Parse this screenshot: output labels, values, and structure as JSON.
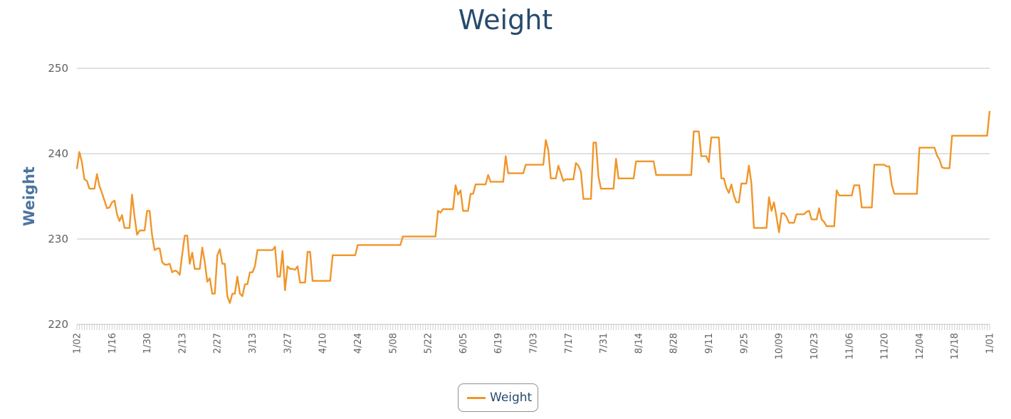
{
  "colors": {
    "series": "#f0962a",
    "title": "#274b6d",
    "grid": "#c0c0c0",
    "axis_title": "#4d759e"
  },
  "chart_data": {
    "type": "line",
    "title": "Weight",
    "xlabel": "",
    "ylabel": "Weight",
    "ylim": [
      220,
      250
    ],
    "yticks": [
      220,
      230,
      240,
      250
    ],
    "grid": true,
    "legend_position": "bottom-center",
    "x_tick_labels": [
      "1/02",
      "1/16",
      "1/30",
      "2/13",
      "2/27",
      "3/13",
      "3/27",
      "4/10",
      "4/24",
      "5/08",
      "5/22",
      "6/05",
      "6/19",
      "7/03",
      "7/17",
      "7/31",
      "8/14",
      "8/28",
      "9/11",
      "9/25",
      "10/09",
      "10/23",
      "11/06",
      "11/20",
      "12/04",
      "12/18",
      "1/01"
    ],
    "series": [
      {
        "name": "Weight",
        "points": [
          [
            0,
            238.2
          ],
          [
            1,
            240.2
          ],
          [
            2,
            239.0
          ],
          [
            3,
            237.0
          ],
          [
            4,
            236.8
          ],
          [
            5,
            235.9
          ],
          [
            7,
            235.9
          ],
          [
            8,
            237.6
          ],
          [
            9,
            236.2
          ],
          [
            10,
            235.4
          ],
          [
            12,
            233.6
          ],
          [
            13,
            233.7
          ],
          [
            14,
            234.3
          ],
          [
            15,
            234.5
          ],
          [
            16,
            232.9
          ],
          [
            17,
            232.1
          ],
          [
            18,
            232.8
          ],
          [
            19,
            231.3
          ],
          [
            21,
            231.3
          ],
          [
            22,
            235.2
          ],
          [
            23,
            232.6
          ],
          [
            24,
            230.5
          ],
          [
            25,
            231.0
          ],
          [
            27,
            231.0
          ],
          [
            28,
            233.3
          ],
          [
            29,
            233.3
          ],
          [
            30,
            230.4
          ],
          [
            31,
            228.7
          ],
          [
            32,
            228.9
          ],
          [
            33,
            228.9
          ],
          [
            34,
            227.3
          ],
          [
            35,
            227.0
          ],
          [
            36,
            227.0
          ],
          [
            37,
            227.1
          ],
          [
            38,
            226.1
          ],
          [
            39,
            226.3
          ],
          [
            40,
            226.2
          ],
          [
            41,
            225.8
          ],
          [
            42,
            228.2
          ],
          [
            43,
            230.4
          ],
          [
            44,
            230.4
          ],
          [
            45,
            227.1
          ],
          [
            46,
            228.4
          ],
          [
            47,
            226.5
          ],
          [
            49,
            226.5
          ],
          [
            50,
            229.0
          ],
          [
            51,
            227.3
          ],
          [
            52,
            225.0
          ],
          [
            53,
            225.4
          ],
          [
            54,
            223.6
          ],
          [
            55,
            223.6
          ],
          [
            56,
            228.1
          ],
          [
            57,
            228.8
          ],
          [
            58,
            227.1
          ],
          [
            59,
            227.1
          ],
          [
            60,
            223.3
          ],
          [
            61,
            222.5
          ],
          [
            62,
            223.6
          ],
          [
            63,
            223.6
          ],
          [
            64,
            225.6
          ],
          [
            65,
            223.6
          ],
          [
            66,
            223.3
          ],
          [
            67,
            224.7
          ],
          [
            68,
            224.7
          ],
          [
            69,
            226.1
          ],
          [
            70,
            226.1
          ],
          [
            71,
            226.8
          ],
          [
            72,
            228.7
          ],
          [
            73,
            228.7
          ],
          [
            78,
            228.7
          ],
          [
            79,
            229.1
          ],
          [
            80,
            225.6
          ],
          [
            81,
            225.6
          ],
          [
            82,
            228.6
          ],
          [
            83,
            224.0
          ],
          [
            84,
            226.8
          ],
          [
            85,
            226.5
          ],
          [
            86,
            226.5
          ],
          [
            87,
            226.4
          ],
          [
            88,
            226.8
          ],
          [
            89,
            224.9
          ],
          [
            90,
            224.9
          ],
          [
            91,
            224.9
          ],
          [
            92,
            228.5
          ],
          [
            93,
            228.5
          ],
          [
            94,
            225.1
          ],
          [
            95,
            225.1
          ],
          [
            101,
            225.1
          ],
          [
            102,
            228.1
          ],
          [
            111,
            228.1
          ],
          [
            112,
            229.3
          ],
          [
            129,
            229.3
          ],
          [
            130,
            230.3
          ],
          [
            143,
            230.3
          ],
          [
            144,
            233.3
          ],
          [
            145,
            233.1
          ],
          [
            146,
            233.5
          ],
          [
            147,
            233.5
          ],
          [
            150,
            233.5
          ],
          [
            151,
            236.3
          ],
          [
            152,
            235.2
          ],
          [
            153,
            235.7
          ],
          [
            154,
            233.3
          ],
          [
            156,
            233.3
          ],
          [
            157,
            235.3
          ],
          [
            158,
            235.3
          ],
          [
            159,
            236.4
          ],
          [
            163,
            236.4
          ],
          [
            164,
            237.5
          ],
          [
            165,
            236.7
          ],
          [
            170,
            236.7
          ],
          [
            171,
            239.7
          ],
          [
            172,
            237.7
          ],
          [
            178,
            237.7
          ],
          [
            179,
            238.7
          ],
          [
            186,
            238.7
          ],
          [
            187,
            241.6
          ],
          [
            188,
            240.4
          ],
          [
            189,
            237.1
          ],
          [
            190,
            237.1
          ],
          [
            191,
            237.1
          ],
          [
            192,
            238.6
          ],
          [
            193,
            237.7
          ],
          [
            194,
            236.8
          ],
          [
            195,
            237.0
          ],
          [
            198,
            237.0
          ],
          [
            199,
            238.9
          ],
          [
            200,
            238.6
          ],
          [
            201,
            237.9
          ],
          [
            202,
            234.7
          ],
          [
            205,
            234.7
          ],
          [
            206,
            241.3
          ],
          [
            207,
            241.3
          ],
          [
            208,
            237.3
          ],
          [
            209,
            235.9
          ],
          [
            214,
            235.9
          ],
          [
            215,
            239.4
          ],
          [
            216,
            237.1
          ],
          [
            222,
            237.1
          ],
          [
            223,
            239.1
          ],
          [
            230,
            239.1
          ],
          [
            231,
            237.5
          ],
          [
            245,
            237.5
          ],
          [
            246,
            242.6
          ],
          [
            248,
            242.6
          ],
          [
            249,
            239.7
          ],
          [
            251,
            239.7
          ],
          [
            252,
            239.0
          ],
          [
            253,
            241.9
          ],
          [
            256,
            241.9
          ],
          [
            257,
            237.1
          ],
          [
            258,
            237.1
          ],
          [
            259,
            236.0
          ],
          [
            260,
            235.4
          ],
          [
            261,
            236.4
          ],
          [
            262,
            235.1
          ],
          [
            263,
            234.3
          ],
          [
            264,
            234.3
          ],
          [
            265,
            236.5
          ],
          [
            267,
            236.5
          ],
          [
            268,
            238.6
          ],
          [
            269,
            236.5
          ],
          [
            270,
            231.3
          ],
          [
            275,
            231.3
          ],
          [
            276,
            234.9
          ],
          [
            277,
            233.3
          ],
          [
            278,
            234.3
          ],
          [
            279,
            232.6
          ],
          [
            280,
            230.8
          ],
          [
            281,
            233.0
          ],
          [
            282,
            233.0
          ],
          [
            283,
            232.6
          ],
          [
            284,
            231.9
          ],
          [
            286,
            231.9
          ],
          [
            287,
            232.9
          ],
          [
            290,
            232.9
          ],
          [
            291,
            233.2
          ],
          [
            292,
            233.3
          ],
          [
            293,
            232.3
          ],
          [
            295,
            232.3
          ],
          [
            296,
            233.6
          ],
          [
            297,
            232.3
          ],
          [
            298,
            232.0
          ],
          [
            299,
            231.5
          ],
          [
            302,
            231.5
          ],
          [
            303,
            235.7
          ],
          [
            304,
            235.1
          ],
          [
            309,
            235.1
          ],
          [
            310,
            236.3
          ],
          [
            312,
            236.3
          ],
          [
            313,
            233.7
          ],
          [
            317,
            233.7
          ],
          [
            318,
            238.7
          ],
          [
            322,
            238.7
          ],
          [
            323,
            238.5
          ],
          [
            324,
            238.5
          ],
          [
            325,
            236.3
          ],
          [
            326,
            235.3
          ],
          [
            335,
            235.3
          ],
          [
            336,
            240.7
          ],
          [
            342,
            240.7
          ],
          [
            343,
            239.8
          ],
          [
            344,
            239.3
          ],
          [
            345,
            238.4
          ],
          [
            346,
            238.3
          ],
          [
            348,
            238.3
          ],
          [
            349,
            242.1
          ],
          [
            363,
            242.1
          ],
          [
            364,
            245.0
          ]
        ]
      }
    ]
  }
}
